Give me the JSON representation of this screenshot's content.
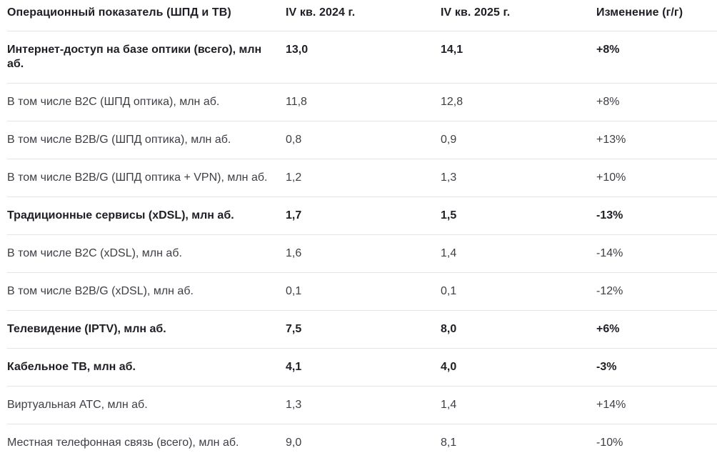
{
  "table": {
    "columns": [
      "Операционный показатель (ШПД и ТВ)",
      "IV кв. 2024 г.",
      "IV кв. 2025 г.",
      "Изменение (г/г)"
    ],
    "rows": [
      {
        "label": "Интернет-доступ на базе оптики (всего), млн аб.",
        "q4_2024": "13,0",
        "q4_2025": "14,1",
        "change": "+8%",
        "bold": true
      },
      {
        "label": "В том числе B2C (ШПД оптика), млн аб.",
        "q4_2024": "11,8",
        "q4_2025": "12,8",
        "change": "+8%",
        "bold": false
      },
      {
        "label": "В том числе B2B/G (ШПД оптика), млн аб.",
        "q4_2024": "0,8",
        "q4_2025": "0,9",
        "change": "+13%",
        "bold": false
      },
      {
        "label": "В том числе B2B/G (ШПД оптика + VPN), млн аб.",
        "q4_2024": "1,2",
        "q4_2025": "1,3",
        "change": "+10%",
        "bold": false
      },
      {
        "label": "Традиционные сервисы (xDSL), млн аб.",
        "q4_2024": "1,7",
        "q4_2025": "1,5",
        "change": "-13%",
        "bold": true
      },
      {
        "label": "В том числе B2C (xDSL), млн аб.",
        "q4_2024": "1,6",
        "q4_2025": "1,4",
        "change": "-14%",
        "bold": false
      },
      {
        "label": "В том числе B2B/G (xDSL), млн аб.",
        "q4_2024": "0,1",
        "q4_2025": "0,1",
        "change": "-12%",
        "bold": false
      },
      {
        "label": "Телевидение (IPTV), млн аб.",
        "q4_2024": "7,5",
        "q4_2025": "8,0",
        "change": "+6%",
        "bold": true
      },
      {
        "label": "Кабельное ТВ, млн аб.",
        "q4_2024": "4,1",
        "q4_2025": "4,0",
        "change": "-3%",
        "bold": true
      },
      {
        "label": "Виртуальная АТС, млн аб.",
        "q4_2024": "1,3",
        "q4_2025": "1,4",
        "change": "+14%",
        "bold": false
      },
      {
        "label": "Местная телефонная связь (всего), млн аб.",
        "q4_2024": "9,0",
        "q4_2025": "8,1",
        "change": "-10%",
        "bold": false
      }
    ]
  },
  "colors": {
    "background": "#ffffff",
    "text_primary": "#1d1f24",
    "text_regular": "#3d3f45",
    "divider": "#e4e4e6"
  }
}
